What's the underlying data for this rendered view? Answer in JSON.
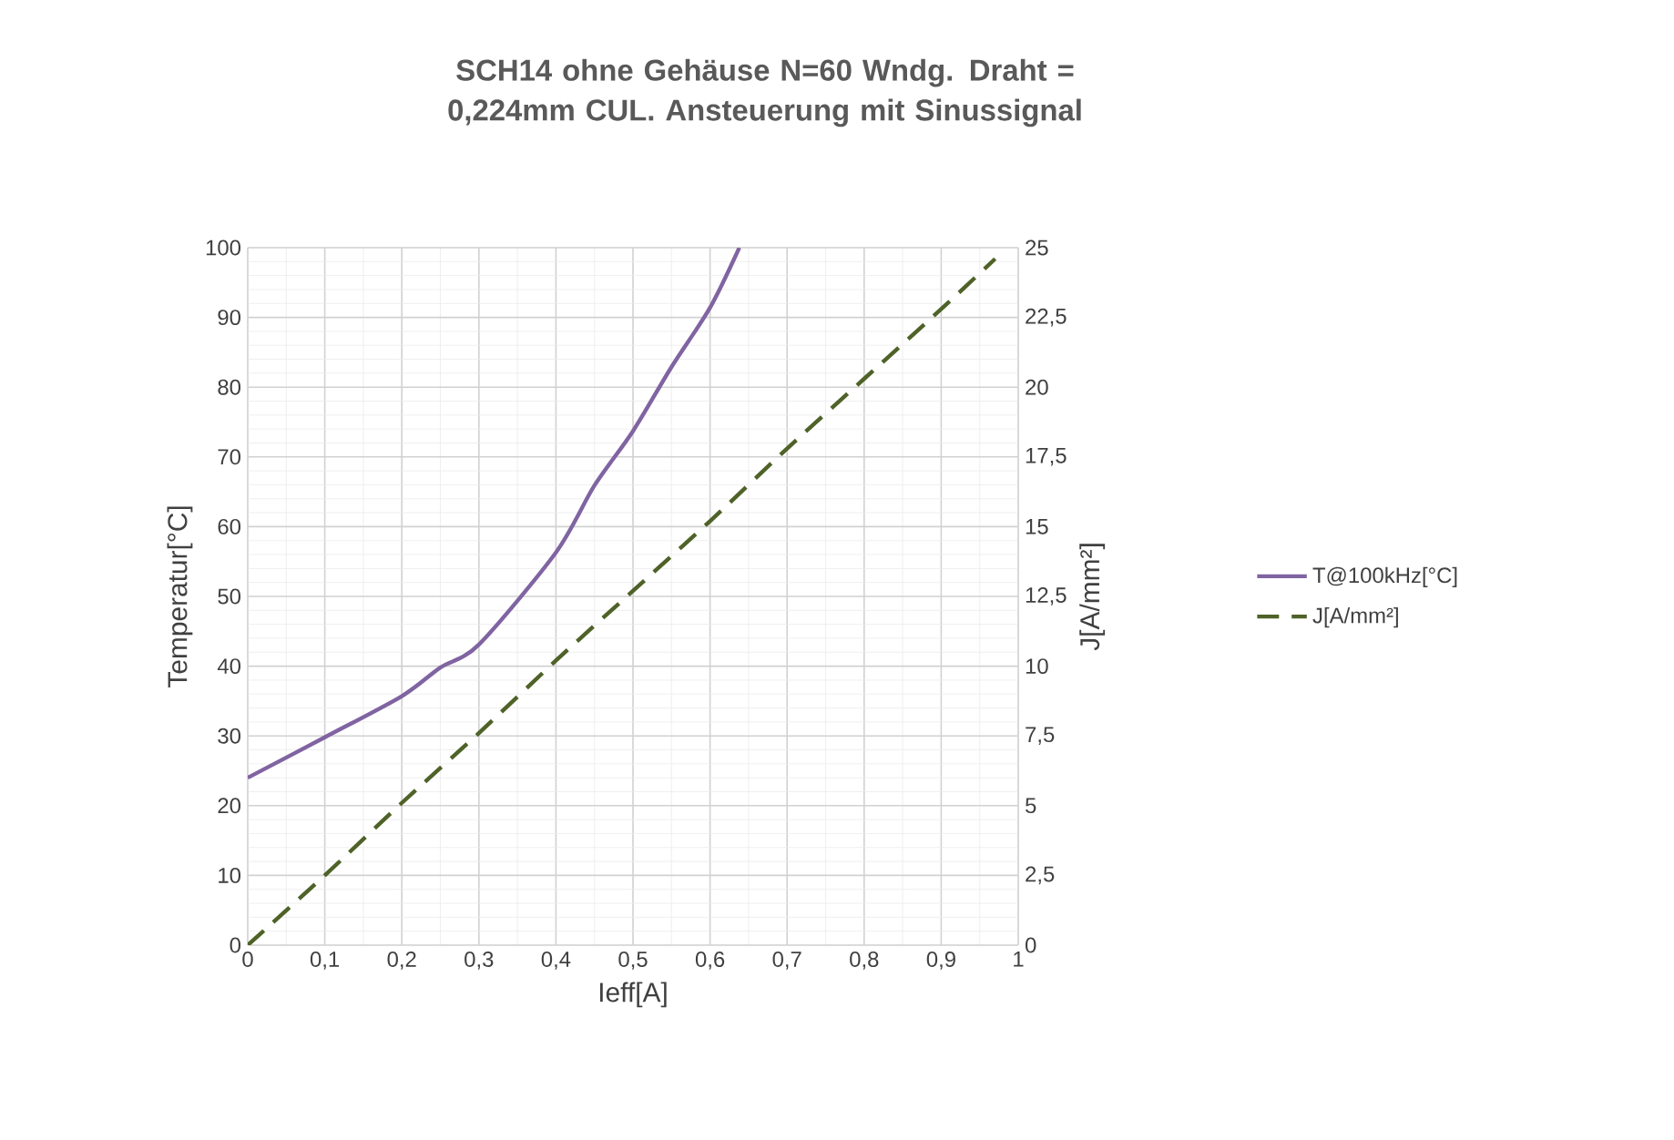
{
  "chart_data": {
    "type": "line",
    "title": "SCH14 ohne Gehäuse N=60 Wndg. Draht = 0,224mm CUL. Ansteuerung mit Sinussignal",
    "xlabel": "Ieff[A]",
    "ylabel": "Temperatur[°C]",
    "y2label": "J[A/mm²]",
    "xlim": [
      0,
      1
    ],
    "xticks": [
      0,
      {
        "value": 0.1,
        "label": "0,1"
      },
      {
        "value": 0.2,
        "label": "0,2"
      },
      {
        "value": 0.3,
        "label": "0,3"
      },
      {
        "value": 0.4,
        "label": "0,4"
      },
      {
        "value": 0.5,
        "label": "0,5"
      },
      {
        "value": 0.6,
        "label": "0,6"
      },
      {
        "value": 0.7,
        "label": "0,7"
      },
      {
        "value": 0.8,
        "label": "0,8"
      },
      {
        "value": 0.9,
        "label": "0,9"
      },
      1
    ],
    "ylim": [
      0,
      100
    ],
    "yticks": [
      0,
      10,
      20,
      30,
      40,
      50,
      60,
      70,
      80,
      90,
      100
    ],
    "y2lim": [
      0,
      25
    ],
    "y2ticks": [
      0,
      {
        "value": 2.5,
        "label": "2,5"
      },
      5,
      {
        "value": 7.5,
        "label": "7,5"
      },
      10,
      {
        "value": 12.5,
        "label": "12,5"
      },
      15,
      {
        "value": 17.5,
        "label": "17,5"
      },
      20,
      {
        "value": 22.5,
        "label": "22,5"
      },
      25
    ],
    "grid": true,
    "legend": "right",
    "marker": "none",
    "series": [
      {
        "name": "T@100kHz[°C]",
        "color": "#8064a2",
        "line_style": "solid",
        "x": [
          0,
          0.1,
          0.2,
          0.25,
          0.3,
          0.4,
          0.45,
          0.5,
          0.55,
          0.6,
          0.638
        ],
        "values": [
          24,
          29.8,
          35.7,
          39.8,
          43.1,
          56.3,
          65.9,
          73.7,
          82.9,
          91.4,
          100
        ]
      },
      {
        "name": "J[A/mm²]",
        "color": "#4f6228",
        "line_style": "dashed",
        "axis": "y2",
        "x": [
          0,
          0.1,
          0.2,
          0.3,
          0.4,
          0.5,
          0.6,
          0.7,
          0.8,
          0.9,
          0.97
        ],
        "values": [
          0,
          2.5,
          5.1,
          7.6,
          10.2,
          12.7,
          15.2,
          17.8,
          20.3,
          22.8,
          24.6
        ]
      }
    ]
  }
}
